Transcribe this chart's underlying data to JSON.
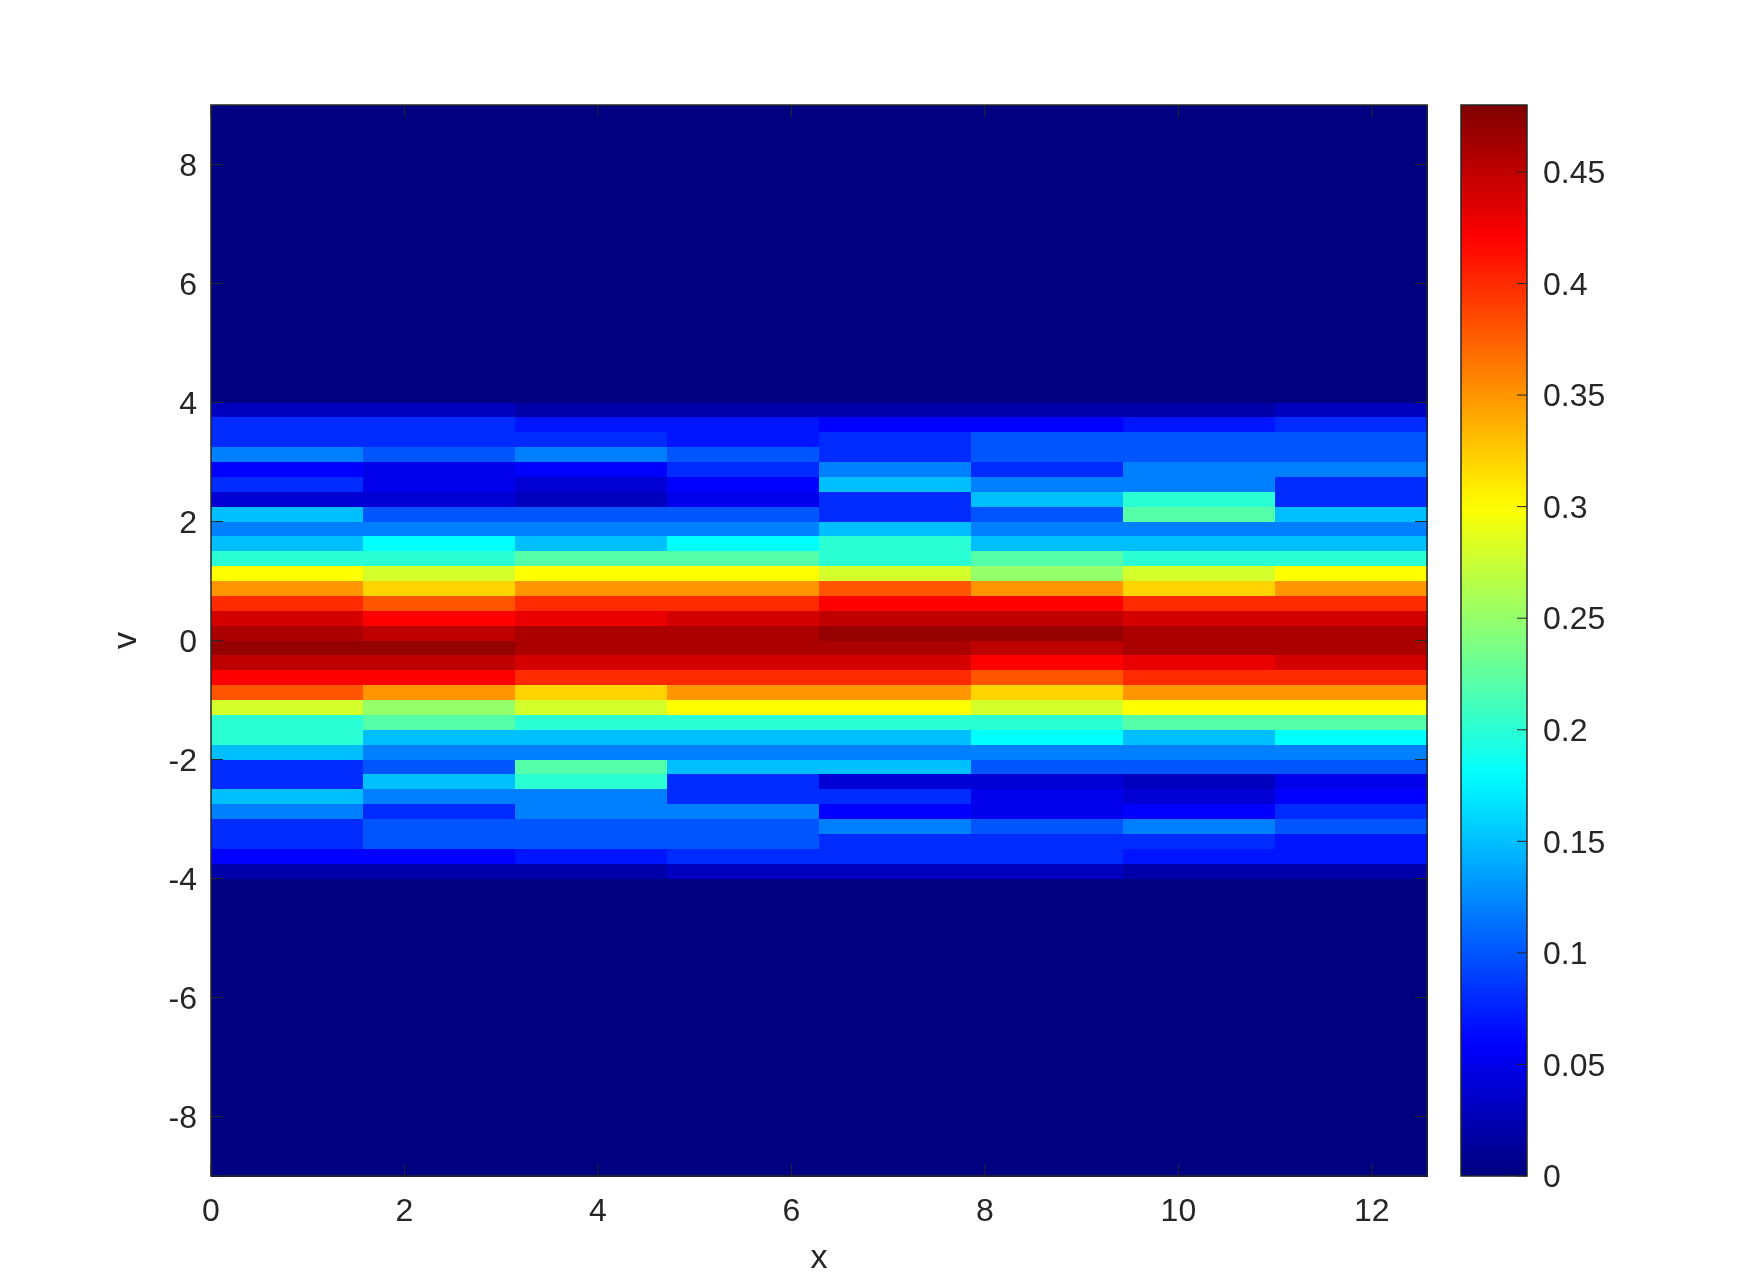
{
  "chart_data": {
    "type": "heatmap",
    "xlabel": "x",
    "ylabel": "v",
    "xlim": [
      0,
      12.57
    ],
    "xticks": [
      0,
      2,
      4,
      6,
      8,
      10,
      12
    ],
    "ylim": [
      -9,
      9
    ],
    "yticks": [
      -8,
      -6,
      -4,
      -2,
      0,
      2,
      4,
      6,
      8
    ],
    "clim": [
      0,
      0.48
    ],
    "cticks": [
      0,
      0.05,
      0.1,
      0.15,
      0.2,
      0.25,
      0.3,
      0.35,
      0.4,
      0.45
    ],
    "cells": [
      [
        0,
        0,
        0,
        0,
        0,
        0,
        0,
        0
      ],
      [
        0,
        0,
        0,
        0,
        0,
        0,
        0,
        0
      ],
      [
        0,
        0,
        0,
        0,
        0,
        0,
        0,
        0
      ],
      [
        0,
        0,
        0,
        0,
        0,
        0,
        0,
        0
      ],
      [
        0,
        0,
        0,
        0,
        0,
        0,
        0,
        0
      ],
      [
        0,
        0,
        0,
        0,
        0,
        0,
        0,
        0
      ],
      [
        0,
        0,
        0,
        0,
        0,
        0,
        0,
        0
      ],
      [
        0,
        0,
        0,
        0,
        0,
        0,
        0,
        0
      ],
      [
        0,
        0,
        0,
        0,
        0,
        0,
        0,
        0
      ],
      [
        0,
        0,
        0,
        0,
        0,
        0,
        0,
        0
      ],
      [
        0,
        0,
        0,
        0,
        0,
        0,
        0,
        0
      ],
      [
        0,
        0,
        0,
        0,
        0,
        0,
        0,
        0
      ],
      [
        0,
        0,
        0,
        0,
        0,
        0,
        0,
        0
      ],
      [
        0,
        0,
        0,
        0,
        0,
        0,
        0,
        0
      ],
      [
        0,
        0,
        0,
        0,
        0,
        0,
        0,
        0
      ],
      [
        0,
        0,
        0,
        0,
        0,
        0,
        0,
        0
      ],
      [
        0,
        0,
        0,
        0,
        0,
        0,
        0,
        0
      ],
      [
        0,
        0,
        0,
        0,
        0,
        0,
        0,
        0
      ],
      [
        0,
        0,
        0,
        0,
        0,
        0,
        0,
        0
      ],
      [
        0,
        0,
        0,
        0,
        0,
        0,
        0,
        0
      ],
      [
        0.03,
        0.03,
        0.02,
        0.02,
        0.02,
        0.02,
        0.02,
        0.03
      ],
      [
        0.08,
        0.08,
        0.07,
        0.07,
        0.06,
        0.06,
        0.07,
        0.08
      ],
      [
        0.08,
        0.08,
        0.08,
        0.07,
        0.08,
        0.1,
        0.1,
        0.1
      ],
      [
        0.12,
        0.1,
        0.12,
        0.1,
        0.08,
        0.1,
        0.1,
        0.1
      ],
      [
        0.06,
        0.05,
        0.06,
        0.08,
        0.12,
        0.08,
        0.12,
        0.12
      ],
      [
        0.08,
        0.05,
        0.04,
        0.06,
        0.15,
        0.12,
        0.12,
        0.08
      ],
      [
        0.04,
        0.04,
        0.03,
        0.05,
        0.08,
        0.15,
        0.2,
        0.08
      ],
      [
        0.15,
        0.1,
        0.1,
        0.1,
        0.08,
        0.1,
        0.22,
        0.15
      ],
      [
        0.12,
        0.12,
        0.12,
        0.12,
        0.15,
        0.12,
        0.12,
        0.12
      ],
      [
        0.15,
        0.18,
        0.15,
        0.18,
        0.2,
        0.15,
        0.15,
        0.15
      ],
      [
        0.2,
        0.2,
        0.22,
        0.22,
        0.2,
        0.22,
        0.2,
        0.2
      ],
      [
        0.3,
        0.28,
        0.3,
        0.3,
        0.28,
        0.25,
        0.28,
        0.3
      ],
      [
        0.35,
        0.32,
        0.35,
        0.35,
        0.38,
        0.35,
        0.32,
        0.35
      ],
      [
        0.4,
        0.38,
        0.4,
        0.4,
        0.42,
        0.42,
        0.4,
        0.4
      ],
      [
        0.44,
        0.42,
        0.43,
        0.44,
        0.45,
        0.45,
        0.44,
        0.44
      ],
      [
        0.46,
        0.45,
        0.46,
        0.46,
        0.47,
        0.47,
        0.46,
        0.46
      ],
      [
        0.47,
        0.47,
        0.46,
        0.46,
        0.46,
        0.45,
        0.46,
        0.46
      ],
      [
        0.45,
        0.45,
        0.44,
        0.44,
        0.44,
        0.42,
        0.43,
        0.44
      ],
      [
        0.42,
        0.42,
        0.4,
        0.4,
        0.4,
        0.38,
        0.4,
        0.4
      ],
      [
        0.38,
        0.35,
        0.32,
        0.35,
        0.35,
        0.32,
        0.35,
        0.35
      ],
      [
        0.28,
        0.25,
        0.28,
        0.3,
        0.3,
        0.28,
        0.3,
        0.3
      ],
      [
        0.2,
        0.22,
        0.2,
        0.2,
        0.2,
        0.2,
        0.22,
        0.22
      ],
      [
        0.2,
        0.15,
        0.15,
        0.15,
        0.15,
        0.18,
        0.15,
        0.18
      ],
      [
        0.15,
        0.12,
        0.12,
        0.12,
        0.12,
        0.12,
        0.12,
        0.12
      ],
      [
        0.08,
        0.1,
        0.22,
        0.15,
        0.15,
        0.1,
        0.1,
        0.1
      ],
      [
        0.08,
        0.15,
        0.2,
        0.08,
        0.04,
        0.04,
        0.03,
        0.05
      ],
      [
        0.15,
        0.12,
        0.12,
        0.08,
        0.08,
        0.05,
        0.04,
        0.06
      ],
      [
        0.12,
        0.08,
        0.12,
        0.12,
        0.06,
        0.05,
        0.06,
        0.08
      ],
      [
        0.08,
        0.1,
        0.1,
        0.1,
        0.12,
        0.1,
        0.12,
        0.1
      ],
      [
        0.08,
        0.1,
        0.1,
        0.1,
        0.08,
        0.08,
        0.08,
        0.07
      ],
      [
        0.06,
        0.06,
        0.07,
        0.08,
        0.08,
        0.08,
        0.07,
        0.07
      ],
      [
        0.02,
        0.02,
        0.02,
        0.03,
        0.03,
        0.03,
        0.02,
        0.02
      ],
      [
        0,
        0,
        0,
        0,
        0,
        0,
        0,
        0
      ],
      [
        0,
        0,
        0,
        0,
        0,
        0,
        0,
        0
      ],
      [
        0,
        0,
        0,
        0,
        0,
        0,
        0,
        0
      ],
      [
        0,
        0,
        0,
        0,
        0,
        0,
        0,
        0
      ],
      [
        0,
        0,
        0,
        0,
        0,
        0,
        0,
        0
      ],
      [
        0,
        0,
        0,
        0,
        0,
        0,
        0,
        0
      ],
      [
        0,
        0,
        0,
        0,
        0,
        0,
        0,
        0
      ],
      [
        0,
        0,
        0,
        0,
        0,
        0,
        0,
        0
      ],
      [
        0,
        0,
        0,
        0,
        0,
        0,
        0,
        0
      ],
      [
        0,
        0,
        0,
        0,
        0,
        0,
        0,
        0
      ],
      [
        0,
        0,
        0,
        0,
        0,
        0,
        0,
        0
      ],
      [
        0,
        0,
        0,
        0,
        0,
        0,
        0,
        0
      ],
      [
        0,
        0,
        0,
        0,
        0,
        0,
        0,
        0
      ],
      [
        0,
        0,
        0,
        0,
        0,
        0,
        0,
        0
      ],
      [
        0,
        0,
        0,
        0,
        0,
        0,
        0,
        0
      ],
      [
        0,
        0,
        0,
        0,
        0,
        0,
        0,
        0
      ],
      [
        0,
        0,
        0,
        0,
        0,
        0,
        0,
        0
      ],
      [
        0,
        0,
        0,
        0,
        0,
        0,
        0,
        0
      ],
      [
        0,
        0,
        0,
        0,
        0,
        0,
        0,
        0
      ],
      [
        0,
        0,
        0,
        0,
        0,
        0,
        0,
        0
      ]
    ]
  }
}
